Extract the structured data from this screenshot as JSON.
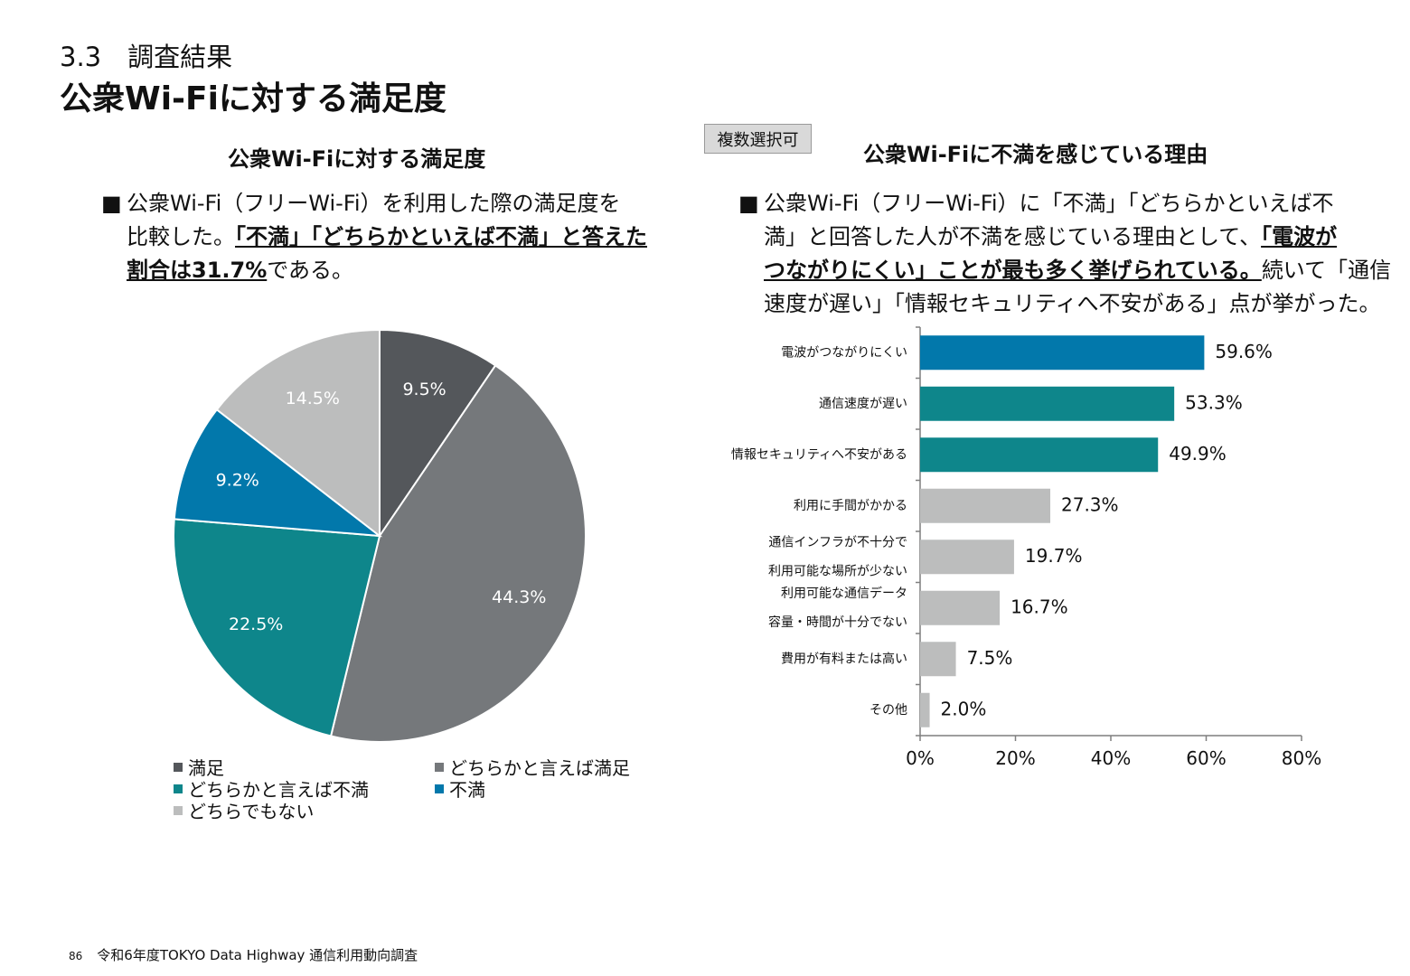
{
  "header": {
    "section_number": "3.3　調査結果",
    "title": "公衆Wi-Fiに対する満足度"
  },
  "left": {
    "chart_title": "公衆Wi-Fiに対する満足度",
    "bullet": "■",
    "text": {
      "l1": "公衆Wi-Fi（フリーWi-Fi）を利用した際の満足度を",
      "l2a": "比較した。",
      "l2b": "「不満」「どちらかといえば不満」と答えた",
      "l3a": "割合は31.7%",
      "l3b": "である。"
    }
  },
  "right": {
    "badge": "複数選択可",
    "chart_title": "公衆Wi-Fiに不満を感じている理由",
    "bullet": "■",
    "text": {
      "l1": "公衆Wi-Fi（フリーWi-Fi）に「不満」「どちらかといえば不",
      "l2a": "満」と回答した人が不満を感じている理由として、",
      "l2b": "「電波が",
      "l3a": "つながりにくい」ことが最も多く挙げられている。",
      "l3b": "続いて「通信",
      "l4": "速度が遅い」「情報セキュリティへ不安がある」点が挙がった。"
    }
  },
  "chart_data": [
    {
      "type": "pie",
      "title": "公衆Wi-Fiに対する満足度",
      "labels": [
        "満足",
        "どちらかと言えば満足",
        "どちらかと言えば不満",
        "不満",
        "どちらでもない"
      ],
      "values": [
        9.5,
        44.3,
        22.5,
        9.2,
        14.5
      ],
      "value_labels": [
        "9.5%",
        "44.3%",
        "22.5%",
        "9.2%",
        "14.5%"
      ],
      "colors": [
        "#54575b",
        "#75787b",
        "#0e868b",
        "#0278ab",
        "#bcbdbd"
      ],
      "start": "12 o'clock, clockwise",
      "legend": "bottom"
    },
    {
      "type": "bar",
      "orientation": "horizontal",
      "title": "公衆Wi-Fiに不満を感じている理由",
      "categories": [
        [
          "電波がつながりにくい"
        ],
        [
          "通信速度が遅い"
        ],
        [
          "情報セキュリティへ不安がある"
        ],
        [
          "利用に手間がかかる"
        ],
        [
          "通信インフラが不十分で",
          "利用可能な場所が少ない"
        ],
        [
          "利用可能な通信データ",
          "容量・時間が十分でない"
        ],
        [
          "費用が有料または高い"
        ],
        [
          "その他"
        ]
      ],
      "values": [
        59.6,
        53.3,
        49.9,
        27.3,
        19.7,
        16.7,
        7.5,
        2.0
      ],
      "value_labels": [
        "59.6%",
        "53.3%",
        "49.9%",
        "27.3%",
        "19.7%",
        "16.7%",
        "7.5%",
        "2.0%"
      ],
      "colors": [
        "#0278ab",
        "#0e868b",
        "#0e868b",
        "#bcbdbd",
        "#bcbdbd",
        "#bcbdbd",
        "#bcbdbd",
        "#bcbdbd"
      ],
      "xlim": [
        0,
        80
      ],
      "xticks": [
        "0%",
        "20%",
        "40%",
        "60%",
        "80%"
      ],
      "xtick_values": [
        0,
        20,
        40,
        60,
        80
      ]
    }
  ],
  "footer": {
    "page_number": "86",
    "text": "令和6年度TOKYO Data Highway 通信利用動向調査"
  }
}
